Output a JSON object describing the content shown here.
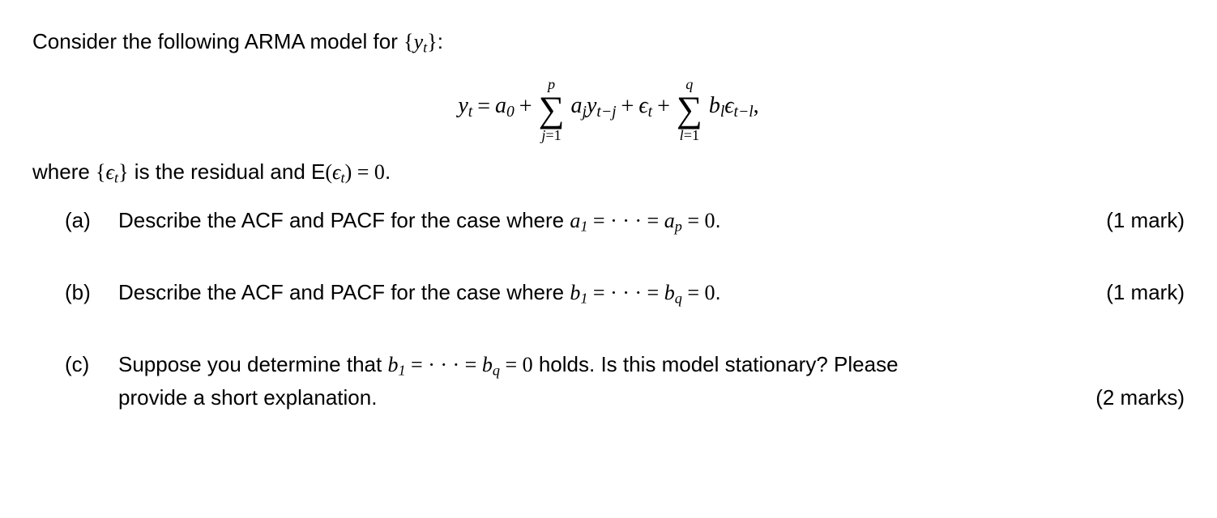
{
  "intro": {
    "prefix": "Consider the following ARMA model for ",
    "set_open": "{",
    "var": "y",
    "var_sub": "t",
    "set_close": "}",
    "suffix": ":"
  },
  "equation": {
    "lhs_var": "y",
    "lhs_sub": "t",
    "eq": " = ",
    "a0": "a",
    "a0_sub": "0",
    "plus1": " + ",
    "sum1_up": "p",
    "sum1_sym": "∑",
    "sum1_low_l": "j",
    "sum1_low_r": "=1",
    "term1_a": "a",
    "term1_a_sub": "j",
    "term1_y": "y",
    "term1_y_sub": "t−j",
    "plus2": " + ",
    "eps": "ϵ",
    "eps_sub": "t",
    "plus3": " + ",
    "sum2_up": "q",
    "sum2_sym": "∑",
    "sum2_low_l": "l",
    "sum2_low_r": "=1",
    "term2_b": "b",
    "term2_b_sub": "l",
    "term2_e": "ϵ",
    "term2_e_sub": "t−l",
    "tail": ","
  },
  "where": {
    "prefix": "where ",
    "set_open": "{",
    "eps": "ϵ",
    "eps_sub": "t",
    "set_close": "}",
    "mid": " is the residual and ",
    "E": "E",
    "paren_open": "(",
    "eps2": "ϵ",
    "eps2_sub": "t",
    "paren_close": ")",
    "eq_zero": " = 0",
    "period": "."
  },
  "parts": {
    "a": {
      "label": "(a)",
      "text1": "Describe the ACF and PACF for the case where ",
      "a1": "a",
      "a1_sub": "1",
      "dots": " = · · · = ",
      "ap": "a",
      "ap_sub": "p",
      "zero": " = 0",
      "period": ".",
      "marks": "(1 mark)"
    },
    "b": {
      "label": "(b)",
      "text1": "Describe the ACF and PACF for the case where ",
      "b1": "b",
      "b1_sub": "1",
      "dots": " = · · · = ",
      "bq": "b",
      "bq_sub": "q",
      "zero": " = 0",
      "period": ".",
      "marks": "(1 mark)"
    },
    "c": {
      "label": "(c)",
      "text1": "Suppose you determine that ",
      "b1": "b",
      "b1_sub": "1",
      "dots": " = · · · = ",
      "bq": "b",
      "bq_sub": "q",
      "zero": " = 0",
      "text2": " holds.  Is this model stationary?  Please",
      "line2": "provide a short explanation.",
      "marks": "(2 marks)"
    }
  }
}
